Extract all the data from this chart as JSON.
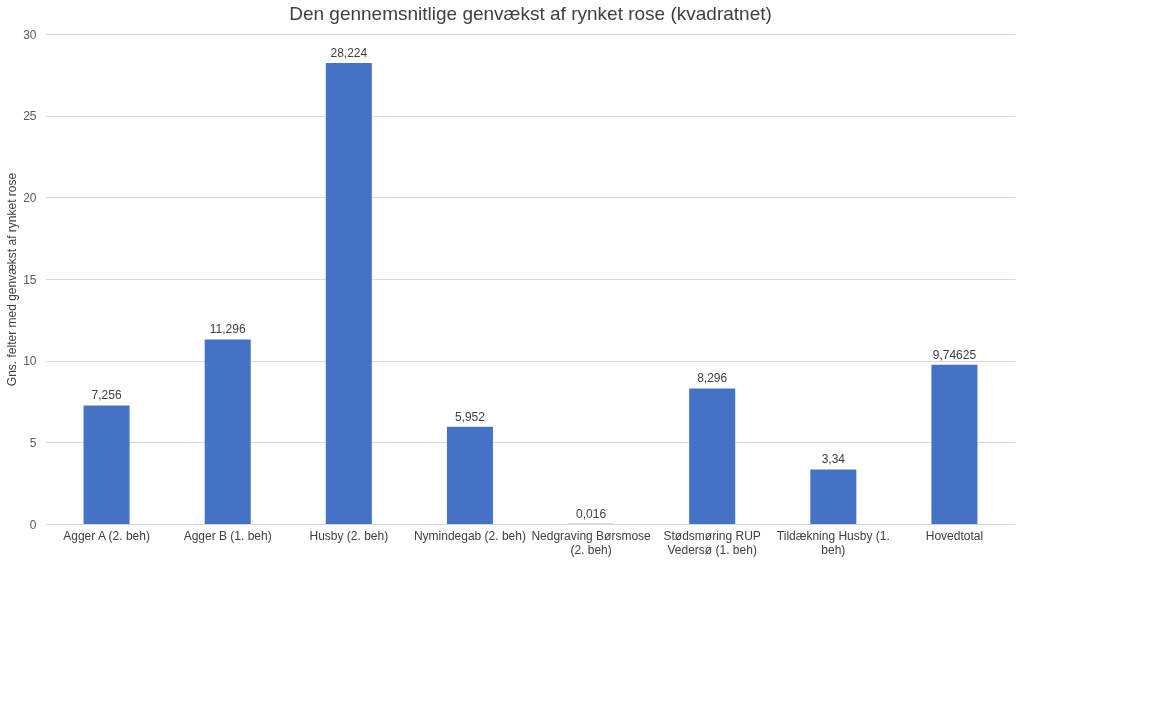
{
  "chart_data": {
    "type": "bar",
    "title": "Den gennemsnitlige genvækst af rynket rose (kvadratnet)",
    "ylabel": "Gns. felter med genvækst af rynket rose",
    "categories": [
      "Agger A (2. beh)",
      "Agger B (1. beh)",
      "Husby (2. beh)",
      "Nymindegab (2. beh)",
      "Nedgraving Børsmose (2. beh)",
      "Stødsmøring RUP Vedersø (1. beh)",
      "Tildækning Husby (1. beh)",
      "Hovedtotal"
    ],
    "values": [
      7.256,
      11.296,
      28.224,
      5.952,
      0.016,
      8.296,
      3.34,
      9.74625
    ],
    "value_labels": [
      "7,256",
      "11,296",
      "28,224",
      "5,952",
      "0,016",
      "8,296",
      "3,34",
      "9,74625"
    ],
    "color": "#4472c4",
    "ylim": [
      0,
      30
    ],
    "yticks": [
      0,
      5,
      10,
      15,
      20,
      25,
      30
    ],
    "grid": "y"
  }
}
